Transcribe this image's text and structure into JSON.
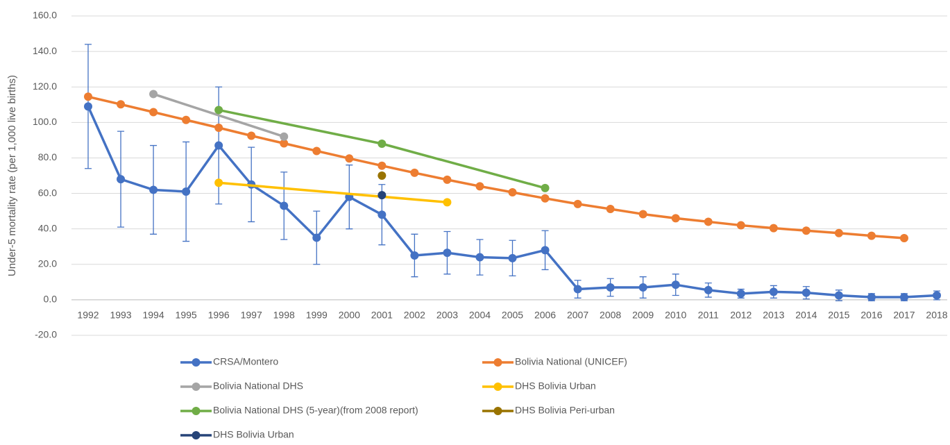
{
  "chart_data": {
    "type": "line",
    "y_label": "Under-5 mortality rate (per 1,000 live births)",
    "x": [
      1992,
      1993,
      1994,
      1995,
      1996,
      1997,
      1998,
      1999,
      2000,
      2001,
      2002,
      2003,
      2004,
      2005,
      2006,
      2007,
      2008,
      2009,
      2010,
      2011,
      2012,
      2013,
      2014,
      2015,
      2016,
      2017,
      2018
    ],
    "ylim": [
      -20,
      160
    ],
    "yticks": [
      {
        "value": -20,
        "label": "-20.0"
      },
      {
        "value": 0,
        "label": "0.0"
      },
      {
        "value": 20,
        "label": "20.0"
      },
      {
        "value": 40,
        "label": "40.0"
      },
      {
        "value": 60,
        "label": "60.0"
      },
      {
        "value": 80,
        "label": "80.0"
      },
      {
        "value": 100,
        "label": "100.0"
      },
      {
        "value": 120,
        "label": "120.0"
      },
      {
        "value": 140,
        "label": "140.0"
      },
      {
        "value": 160,
        "label": "160.0"
      }
    ],
    "grid": true,
    "legend": "bottom",
    "series": [
      {
        "name": "CRSA/Montero",
        "color": "#4472c4",
        "values": [
          109,
          68,
          62,
          61,
          87,
          65,
          53,
          35,
          58,
          48,
          25,
          26.5,
          24,
          23.5,
          28,
          6,
          7,
          7,
          8.5,
          5.5,
          3.5,
          4.5,
          4,
          2.5,
          1.5,
          1.5,
          2.5
        ],
        "errors": [
          35,
          27,
          25,
          28,
          33,
          21,
          19,
          15,
          18,
          17,
          12,
          12,
          10,
          10,
          11,
          5,
          5,
          6,
          6,
          4,
          2.5,
          3.5,
          3.5,
          3,
          2,
          2,
          2.5
        ]
      },
      {
        "name": "Bolivia National (UNICEF)",
        "color": "#ed7d31",
        "values": [
          114.5,
          110.2,
          105.8,
          101.4,
          97,
          92.5,
          88.2,
          83.9,
          79.7,
          75.6,
          71.6,
          67.7,
          64,
          60.6,
          57.2,
          54,
          51.2,
          48.3,
          46,
          44,
          42,
          40.4,
          39,
          37.6,
          36.1,
          34.8,
          null
        ]
      },
      {
        "name": "Bolivia  National DHS",
        "color": "#a5a5a5",
        "x": [
          1994,
          1998
        ],
        "values": [
          116,
          92
        ]
      },
      {
        "name": "DHS Bolivia Urban",
        "color": "#ffc000",
        "x": [
          1996,
          2003
        ],
        "values": [
          66,
          55
        ]
      },
      {
        "name": "Bolivia National DHS (5-year)(from 2008 report)",
        "color": "#70ad47",
        "x": [
          1996,
          2001,
          2006
        ],
        "values": [
          107,
          88,
          63
        ]
      },
      {
        "name": "DHS Bolivia Peri-urban",
        "color": "#997300",
        "x": [
          2001
        ],
        "values": [
          70
        ]
      },
      {
        "name": "DHS Bolivia Urban",
        "color": "#264478",
        "x": [
          2001
        ],
        "values": [
          59
        ]
      }
    ]
  }
}
